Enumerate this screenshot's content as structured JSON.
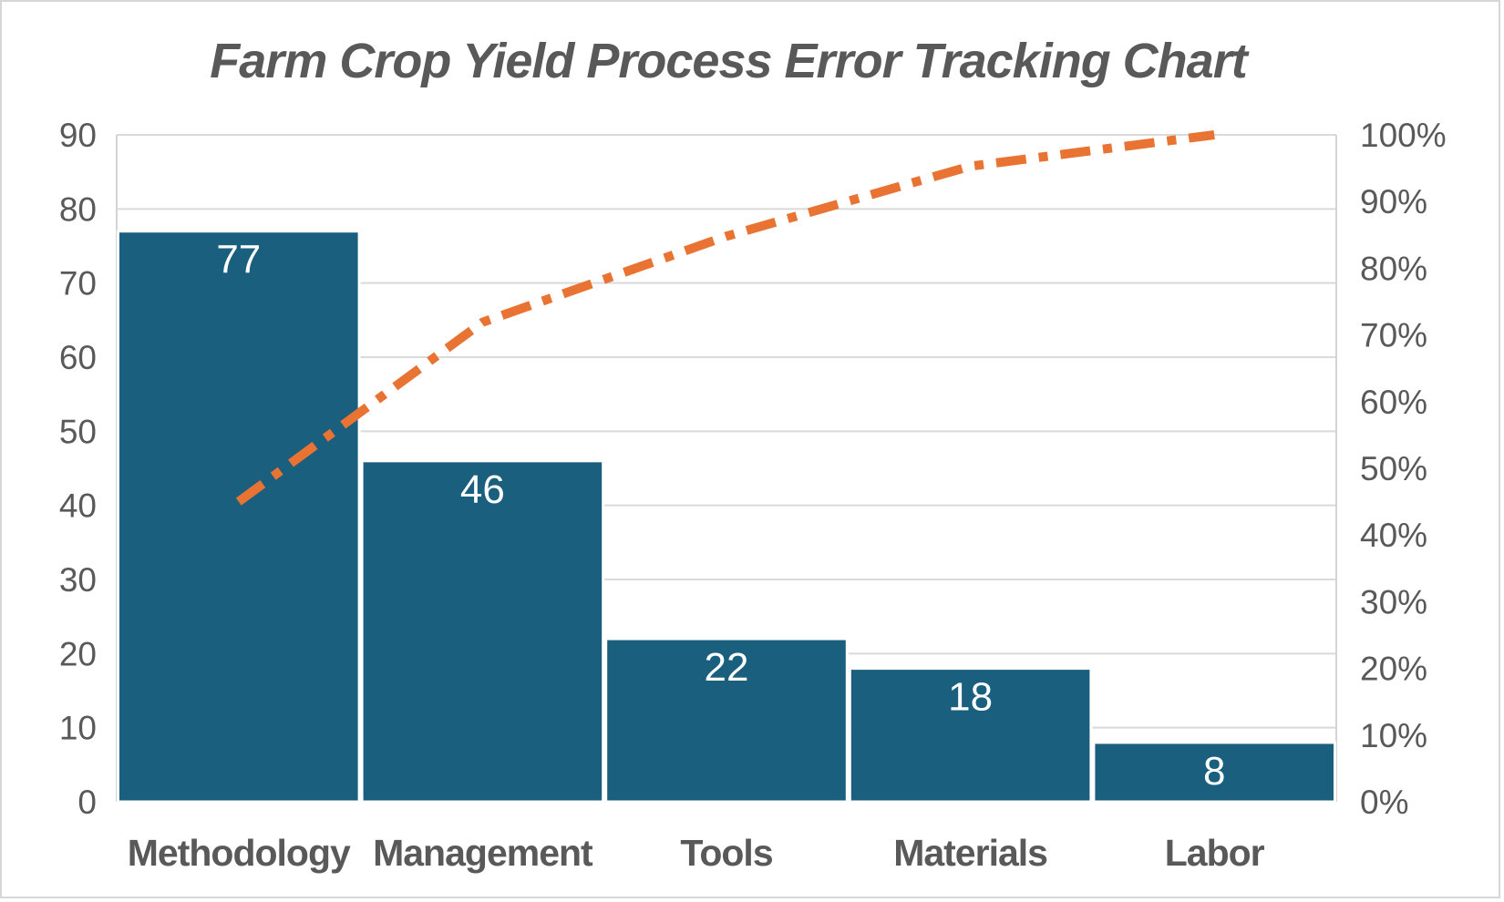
{
  "chart_data": {
    "type": "pareto",
    "title": "Farm Crop Yield Process Error Tracking Chart",
    "categories": [
      "Methodology",
      "Management",
      "Tools",
      "Materials",
      "Labor"
    ],
    "values": [
      77,
      46,
      22,
      18,
      8
    ],
    "data_labels": [
      "77",
      "46",
      "22",
      "18",
      "8"
    ],
    "series": [
      {
        "name": "error-count-bars",
        "type": "bar",
        "values": [
          77,
          46,
          22,
          18,
          8
        ]
      },
      {
        "name": "cumulative-percent-line",
        "type": "line",
        "values": [
          45.0,
          71.9,
          84.8,
          95.3,
          100.0
        ]
      }
    ],
    "left_axis": {
      "min": 0,
      "max": 90,
      "step": 10,
      "tick_labels": [
        "0",
        "10",
        "20",
        "30",
        "40",
        "50",
        "60",
        "70",
        "80",
        "90"
      ]
    },
    "right_axis": {
      "min": 0,
      "max": 100,
      "step": 10,
      "tick_labels": [
        "0%",
        "10%",
        "20%",
        "30%",
        "40%",
        "50%",
        "60%",
        "70%",
        "80%",
        "90%",
        "100%"
      ]
    },
    "grid": true,
    "legend": false,
    "line_style": "dash-dot",
    "colors": {
      "bar_fill": "#1A5F7E",
      "bar_separator": "#FFFFFF",
      "line_stroke": "#E87332",
      "axis_text": "#595959",
      "category_text": "#595959",
      "title_text": "#595959",
      "gridline": "#DADADA",
      "plot_border": "#D4D4D4",
      "data_label_text": "#FFFFFF",
      "background": "#FFFFFF"
    }
  }
}
